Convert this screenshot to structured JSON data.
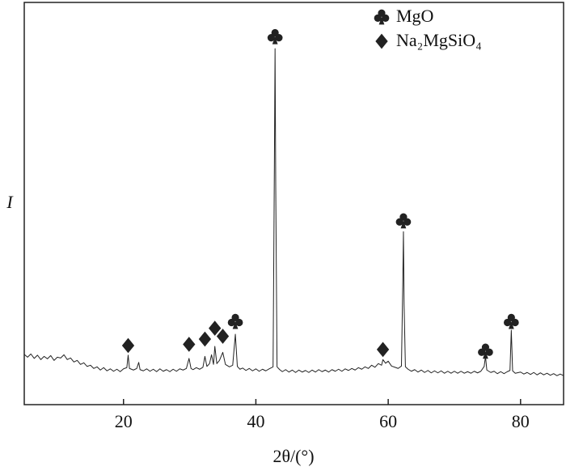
{
  "chart_data": {
    "type": "line",
    "xlabel": "2θ/(°)",
    "ylabel": "I",
    "xlim": [
      5,
      86.5
    ],
    "ylim": [
      0,
      100
    ],
    "xticks": [
      20,
      40,
      60,
      80
    ],
    "color": "#222222",
    "legend": "upper right",
    "x": [
      5,
      5.5,
      6,
      6.5,
      7,
      7.5,
      8,
      8.5,
      9,
      9.5,
      10,
      10.5,
      11,
      11.5,
      12,
      12.5,
      13,
      13.5,
      14,
      14.5,
      15,
      15.5,
      16,
      16.5,
      17,
      17.5,
      18,
      18.5,
      19,
      19.5,
      20,
      20.5,
      20.7,
      20.9,
      21.5,
      22,
      22.3,
      22.5,
      23,
      23.5,
      24,
      24.5,
      25,
      25.5,
      26,
      26.5,
      27,
      27.5,
      28,
      28.5,
      29,
      29.5,
      29.9,
      30.2,
      30.5,
      31,
      31.5,
      32,
      32.3,
      32.6,
      33,
      33.3,
      33.6,
      33.8,
      34.1,
      34.5,
      35,
      35.4,
      36,
      36.5,
      36.9,
      37.2,
      37.6,
      38,
      38.5,
      39,
      39.5,
      40,
      40.5,
      41,
      41.5,
      42,
      42.6,
      42.8,
      42.9,
      43,
      43.2,
      43.6,
      44,
      44.5,
      45,
      45.5,
      46,
      46.5,
      47,
      47.5,
      48,
      48.5,
      49,
      49.5,
      50,
      50.5,
      51,
      51.5,
      52,
      52.5,
      53,
      53.5,
      54,
      54.5,
      55,
      55.5,
      56,
      56.5,
      57,
      57.5,
      58,
      58.5,
      59,
      59.2,
      59.6,
      60,
      60.5,
      61,
      61.5,
      62,
      62.2,
      62.3,
      62.4,
      62.6,
      63,
      63.5,
      64,
      64.5,
      65,
      65.5,
      66,
      66.5,
      67,
      67.5,
      68,
      68.5,
      69,
      69.5,
      70,
      70.5,
      71,
      71.5,
      72,
      72.5,
      73,
      73.5,
      74,
      74.5,
      74.7,
      74.9,
      75.5,
      76,
      76.5,
      77,
      77.5,
      78,
      78.4,
      78.6,
      78.8,
      79.2,
      80,
      80.5,
      81,
      81.5,
      82,
      82.5,
      83,
      83.5,
      84,
      84.5,
      85,
      85.5,
      86,
      86.5
    ],
    "values": [
      12.5,
      11.8,
      12.6,
      11.5,
      12.3,
      11.2,
      12.0,
      11.4,
      12.2,
      11.0,
      11.8,
      11.6,
      12.4,
      11.2,
      11.6,
      10.6,
      11.0,
      10.0,
      10.4,
      9.5,
      9.8,
      9.0,
      9.4,
      8.6,
      9.2,
      8.4,
      8.9,
      8.3,
      8.8,
      8.2,
      8.9,
      9.2,
      12.3,
      9.0,
      8.6,
      9.0,
      10.5,
      8.7,
      8.4,
      8.9,
      8.3,
      8.8,
      8.2,
      8.9,
      8.3,
      8.7,
      8.2,
      8.8,
      8.3,
      8.9,
      8.6,
      9.0,
      11.5,
      9.0,
      8.7,
      9.2,
      8.8,
      9.3,
      12.0,
      9.5,
      10.2,
      12.4,
      10.0,
      14.5,
      10.2,
      11.0,
      13.0,
      10.0,
      9.4,
      9.8,
      17.5,
      9.5,
      8.8,
      9.1,
      8.5,
      9.0,
      8.4,
      8.9,
      8.3,
      8.8,
      8.4,
      8.9,
      9.4,
      60,
      88.5,
      55,
      9.4,
      8.7,
      8.2,
      8.7,
      8.1,
      8.6,
      8.0,
      8.6,
      8.1,
      8.5,
      8.0,
      8.6,
      8.1,
      8.7,
      8.2,
      8.6,
      8.1,
      8.7,
      8.3,
      8.8,
      8.3,
      8.9,
      8.5,
      9.0,
      8.6,
      9.2,
      8.8,
      9.4,
      9.0,
      9.8,
      9.3,
      10.2,
      9.8,
      11.2,
      10.3,
      10.8,
      9.6,
      9.3,
      9.0,
      9.6,
      30,
      43,
      25,
      9.4,
      8.8,
      8.3,
      8.7,
      8.1,
      8.6,
      8.0,
      8.5,
      7.9,
      8.4,
      7.9,
      8.4,
      7.8,
      8.3,
      7.8,
      8.3,
      7.8,
      8.3,
      7.8,
      8.2,
      7.8,
      8.3,
      7.9,
      8.3,
      9.5,
      12,
      8.6,
      8.0,
      8.3,
      7.7,
      8.2,
      7.7,
      8.2,
      8.5,
      18.5,
      8.4,
      7.8,
      8.1,
      7.6,
      8.0,
      7.5,
      8.0,
      7.4,
      7.9,
      7.4,
      7.8,
      7.3,
      7.7,
      7.2,
      7.6,
      7.2
    ],
    "markers": [
      {
        "name": "MgO",
        "symbol": "club",
        "color": "#222222",
        "x": [
          36.9,
          42.9,
          62.3,
          74.7,
          78.6
        ],
        "values": [
          20.7,
          91.5,
          45.7,
          13.3,
          20.7
        ]
      },
      {
        "name": "Na₂MgSiO₄",
        "symbol": "diamond",
        "color": "#222222",
        "x": [
          20.7,
          29.9,
          32.3,
          33.8,
          35.0,
          59.2
        ],
        "values": [
          14.7,
          15.0,
          16.3,
          19.0,
          17.0,
          13.7
        ]
      }
    ]
  }
}
